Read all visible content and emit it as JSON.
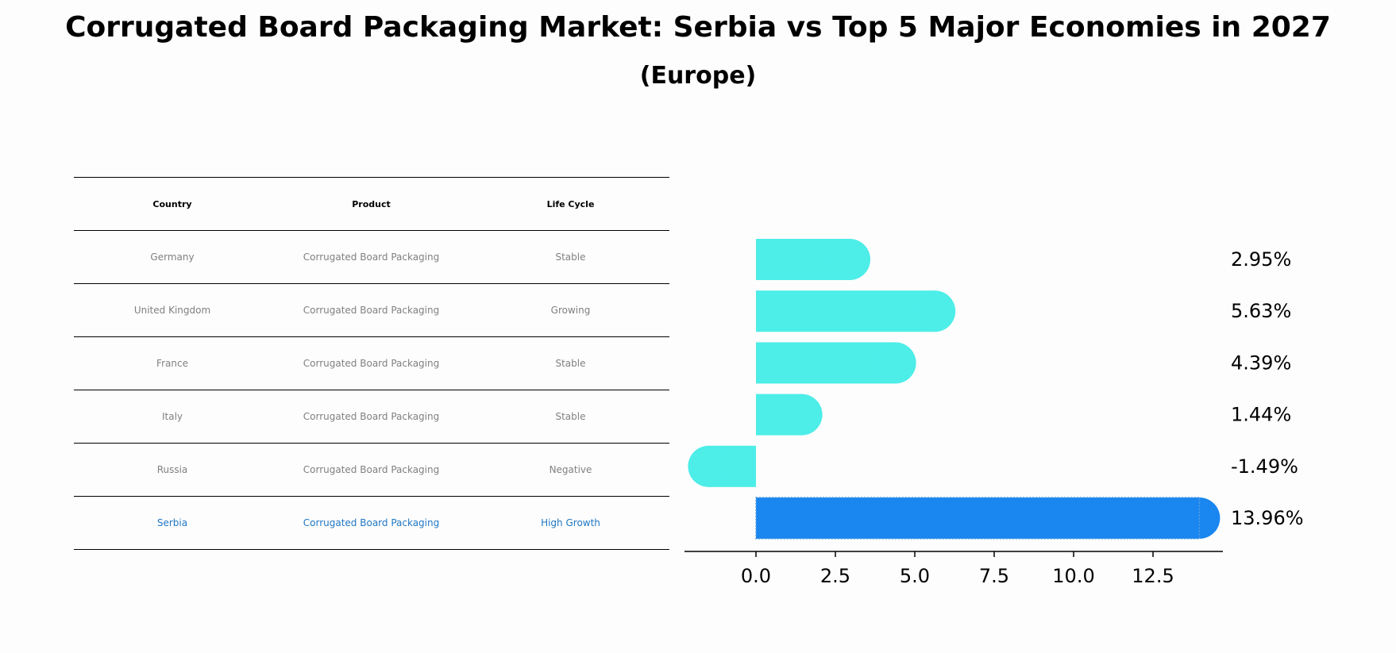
{
  "chart_data": {
    "type": "bar",
    "orientation": "horizontal",
    "title": "Corrugated Board Packaging Market: Serbia vs Top 5 Major Economies in 2027",
    "subtitle": "(Europe)",
    "categories": [
      "Germany",
      "United Kingdom",
      "France",
      "Italy",
      "Russia",
      "Serbia"
    ],
    "values": [
      2.95,
      5.63,
      4.39,
      1.44,
      -1.49,
      13.96
    ],
    "value_labels": [
      "2.95%",
      "5.63%",
      "4.39%",
      "1.44%",
      "-1.49%",
      "13.96%"
    ],
    "highlight_index": 5,
    "xlim": [
      -2.25,
      14.7
    ],
    "xticks": [
      0.0,
      2.5,
      5.0,
      7.5,
      10.0,
      12.5
    ],
    "xtick_labels": [
      "0.0",
      "2.5",
      "5.0",
      "7.5",
      "10.0",
      "12.5"
    ],
    "colors": {
      "default": "#4dede8",
      "highlight": "#1a86f0"
    }
  },
  "table": {
    "headers": [
      "Country",
      "Product",
      "Life Cycle"
    ],
    "rows": [
      [
        "Germany",
        "Corrugated Board Packaging",
        "Stable"
      ],
      [
        "United Kingdom",
        "Corrugated Board Packaging",
        "Growing"
      ],
      [
        "France",
        "Corrugated Board Packaging",
        "Stable"
      ],
      [
        "Italy",
        "Corrugated Board Packaging",
        "Stable"
      ],
      [
        "Russia",
        "Corrugated Board Packaging",
        "Negative"
      ],
      [
        "Serbia",
        "Corrugated Board Packaging",
        "High Growth"
      ]
    ]
  }
}
